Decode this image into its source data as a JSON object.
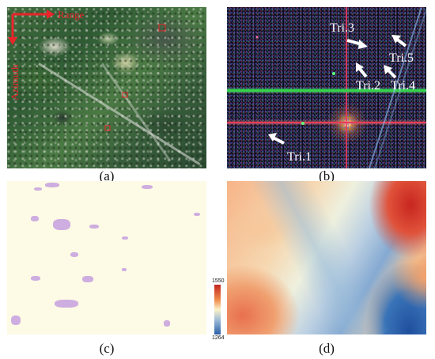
{
  "panels": {
    "a": {
      "caption": "(a)",
      "range_label": "Range",
      "azimuth_label": "Azimuth"
    },
    "b": {
      "caption": "(b)",
      "targets": {
        "tri1": "Tri.1",
        "tri2": "Tri.2",
        "tri3": "Tri.3",
        "tri4": "Tri.4",
        "tri5": "Tri.5"
      }
    },
    "c": {
      "caption": "(c)"
    },
    "d": {
      "caption": "(d)"
    }
  },
  "colorbar": {
    "max": "1550",
    "min": "1264"
  },
  "colors": {
    "annotation_red": "#e8252a",
    "arrow_white": "#ffffff"
  }
}
